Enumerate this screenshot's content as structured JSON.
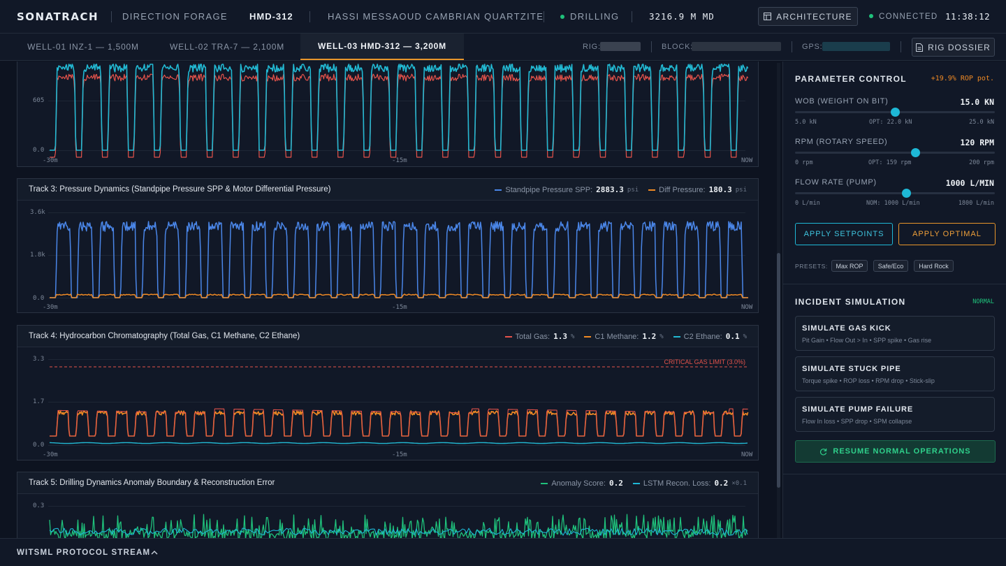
{
  "header": {
    "brand": "SONATRACH",
    "department": "DIRECTION FORAGE",
    "well_code": "HMD-312",
    "field": "HASSI MESSAOUD CAMBRIAN QUARTZITE",
    "status": "DRILLING",
    "depth": "3216.9 M MD",
    "architecture_label": "ARCHITECTURE",
    "connection": "CONNECTED",
    "clock": "11:38:12"
  },
  "tabs": [
    {
      "label": "WELL-01 INZ-1 — 1,500M",
      "active": false
    },
    {
      "label": "WELL-02 TRA-7 — 2,100M",
      "active": false
    },
    {
      "label": "WELL-03 HMD-312 — 3,200M",
      "active": true
    }
  ],
  "meta": {
    "rig_label": "RIG:",
    "block_label": "BLOCK:",
    "gps_label": "GPS:",
    "dossier_label": "RIG DOSSIER"
  },
  "colors": {
    "cyan": "#22b9d3",
    "red": "#e5534b",
    "blue": "#4a86e8",
    "orange": "#f08a24",
    "green": "#1fc17b",
    "anomaly_cyan": "#1eb8d6"
  },
  "tracks": {
    "t2": {
      "ticks": [
        "605",
        "0.0"
      ],
      "time": [
        "-30m",
        "-15m",
        "NOW"
      ]
    },
    "t3": {
      "title": "Track 3: Pressure Dynamics (Standpipe Pressure SPP & Motor Differential Pressure)",
      "legend": [
        {
          "name": "Standpipe Pressure SPP:",
          "value": "2883.3",
          "unit": "psi"
        },
        {
          "name": "Diff Pressure:",
          "value": "180.3",
          "unit": "psi"
        }
      ],
      "ticks": [
        "3.6k",
        "1.8k",
        "0.0"
      ],
      "time": [
        "-30m",
        "-15m",
        "NOW"
      ]
    },
    "t4": {
      "title": "Track 4: Hydrocarbon Chromatography (Total Gas, C1 Methane, C2 Ethane)",
      "legend": [
        {
          "name": "Total Gas:",
          "value": "1.3",
          "unit": "%"
        },
        {
          "name": "C1 Methane:",
          "value": "1.2",
          "unit": "%"
        },
        {
          "name": "C2 Ethane:",
          "value": "0.1",
          "unit": "%"
        }
      ],
      "limit_label": "CRITICAL GAS LIMIT (3.0%)",
      "ticks": [
        "3.3",
        "1.7",
        "0.0"
      ],
      "time": [
        "-30m",
        "-15m",
        "NOW"
      ]
    },
    "t5": {
      "title": "Track 5: Drilling Dynamics Anomaly Boundary & Reconstruction Error",
      "legend": [
        {
          "name": "Anomaly Score:",
          "value": "0.2",
          "unit": ""
        },
        {
          "name": "LSTM Recon. Loss:",
          "value": "0.2",
          "unit": "×0.1"
        }
      ],
      "ticks": [
        "0.3"
      ]
    }
  },
  "panel": {
    "param_title": "PARAMETER CONTROL",
    "rop_potential": "+19.9% ROP pot.",
    "params": [
      {
        "label": "WOB (WEIGHT ON BIT)",
        "value": "15.0 KN",
        "min": "5.0 kN",
        "mid": "OPT: 22.0 kN",
        "max": "25.0 kN",
        "level": 0.5
      },
      {
        "label": "RPM (ROTARY SPEED)",
        "value": "120 RPM",
        "min": "0 rpm",
        "mid": "OPT: 159 rpm",
        "max": "200 rpm",
        "level": 0.6
      },
      {
        "label": "FLOW RATE (PUMP)",
        "value": "1000 L/MIN",
        "min": "0 L/min",
        "mid": "NOM: 1000 L/min",
        "max": "1800 L/min",
        "level": 0.556
      }
    ],
    "apply_setpoints": "APPLY SETPOINTS",
    "apply_optimal": "APPLY OPTIMAL",
    "presets_label": "PRESETS:",
    "presets": [
      "Max ROP",
      "Safe/Eco",
      "Hard Rock"
    ],
    "incident_title": "INCIDENT SIMULATION",
    "incident_status": "NORMAL",
    "incidents": [
      {
        "title": "SIMULATE GAS KICK",
        "sub": "Pit Gain • Flow Out > In • SPP spike • Gas rise"
      },
      {
        "title": "SIMULATE STUCK PIPE",
        "sub": "Torque spike • ROP loss • RPM drop • Stick-slip"
      },
      {
        "title": "SIMULATE PUMP FAILURE",
        "sub": "Flow In loss • SPP drop • SPM collapse"
      }
    ],
    "resume": "RESUME NORMAL OPERATIONS"
  },
  "footer": {
    "title": "WITSML PROTOCOL STREAM"
  }
}
